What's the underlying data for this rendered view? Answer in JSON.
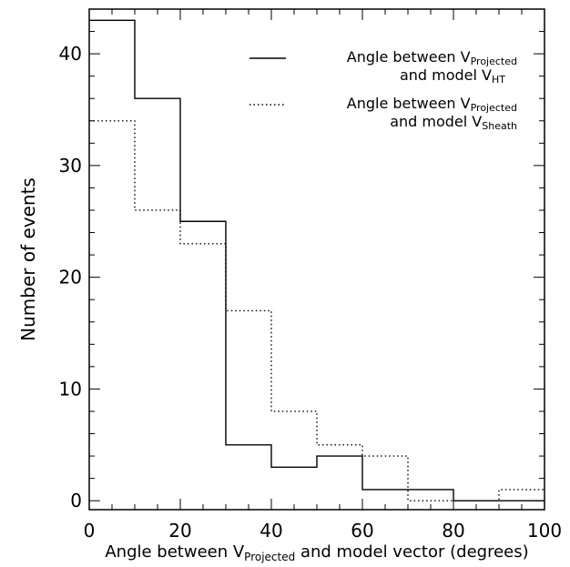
{
  "chart_data": {
    "type": "histogram",
    "xlabel": {
      "pre": "Angle between V",
      "sub": "Projected",
      "post": " and model vector (degrees)"
    },
    "ylabel": "Number of events",
    "xlim": [
      0,
      100
    ],
    "ylim": [
      -0.8,
      44
    ],
    "x_ticks": [
      0,
      20,
      40,
      60,
      80,
      100
    ],
    "y_ticks": [
      0,
      10,
      20,
      30,
      40
    ],
    "bin_edges": [
      0,
      10,
      20,
      30,
      40,
      50,
      60,
      70,
      80,
      90,
      100
    ],
    "legend_position": "top-right",
    "series": [
      {
        "style": "solid",
        "values": [
          43,
          36,
          25,
          5,
          3,
          4,
          1,
          1,
          0,
          0
        ],
        "legend": {
          "line1_pre": "Angle between V",
          "line1_sub": "Projected",
          "line2_pre": "and model V",
          "line2_sub": "HT"
        }
      },
      {
        "style": "dotted",
        "values": [
          34,
          26,
          23,
          17,
          8,
          5,
          4,
          0,
          0,
          1
        ],
        "legend": {
          "line1_pre": "Angle between V",
          "line1_sub": "Projected",
          "line2_pre": "and model V",
          "line2_sub": "Sheath"
        }
      }
    ]
  }
}
